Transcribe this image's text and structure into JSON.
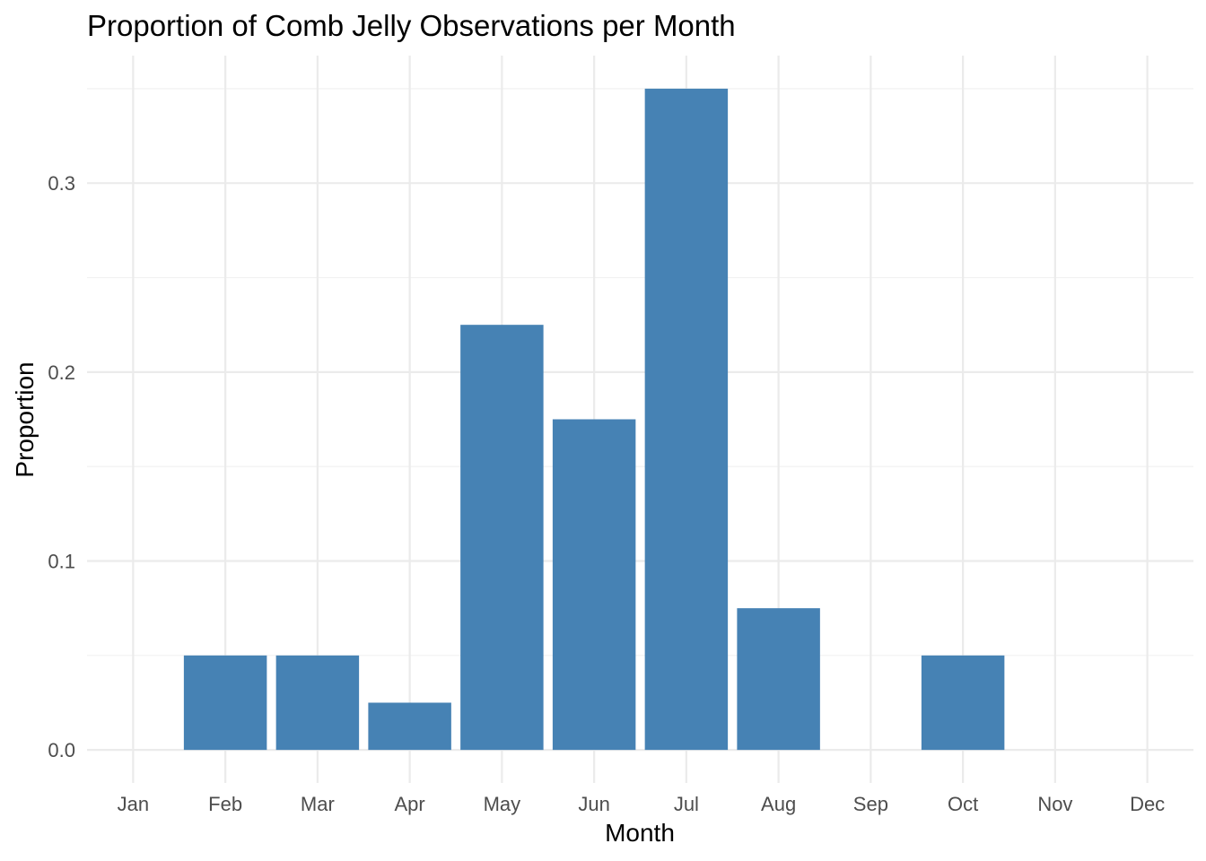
{
  "chart_data": {
    "type": "bar",
    "title": "Proportion of Comb Jelly Observations per Month",
    "xlabel": "Month",
    "ylabel": "Proportion",
    "categories": [
      "Jan",
      "Feb",
      "Mar",
      "Apr",
      "May",
      "Jun",
      "Jul",
      "Aug",
      "Sep",
      "Oct",
      "Nov",
      "Dec"
    ],
    "values": [
      0,
      0.05,
      0.05,
      0.025,
      0.225,
      0.175,
      0.35,
      0.075,
      0,
      0.05,
      0,
      0
    ],
    "ylim": [
      -0.0175,
      0.3675
    ],
    "yticks": [
      0.0,
      0.1,
      0.2,
      0.3
    ],
    "ytick_labels": [
      "0.0",
      "0.1",
      "0.2",
      "0.3"
    ],
    "grid": true,
    "legend": "none",
    "bar_color": "#4682B4"
  }
}
